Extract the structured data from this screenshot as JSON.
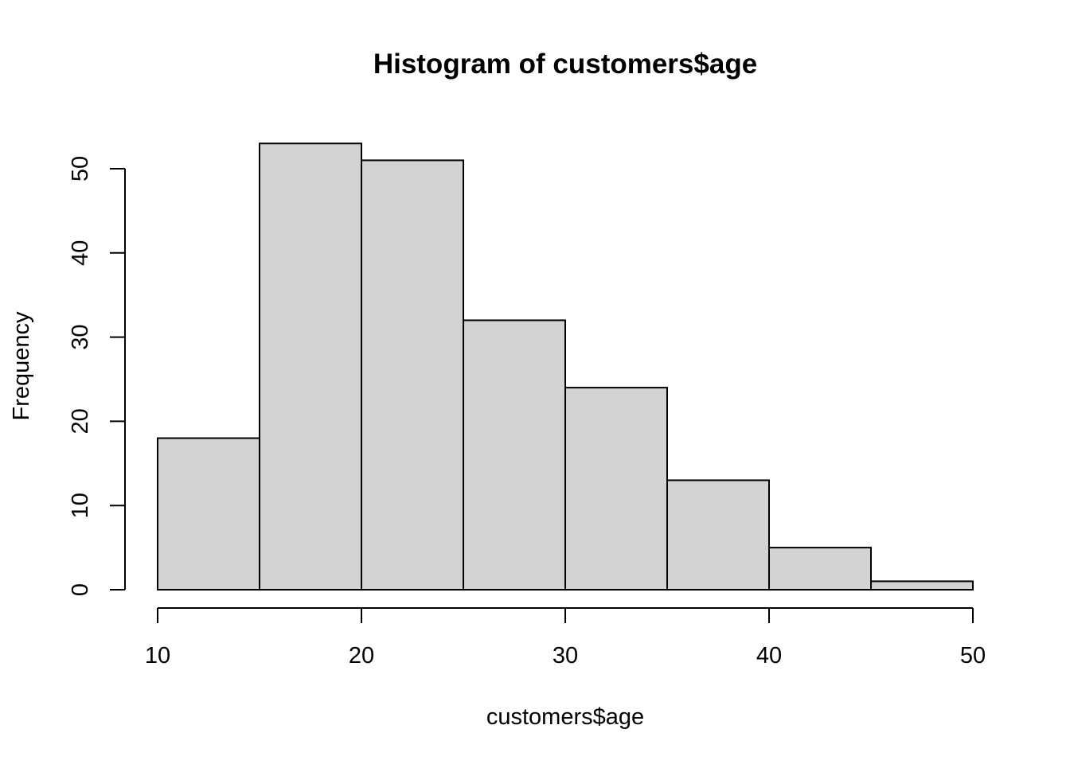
{
  "chart_data": {
    "type": "bar",
    "title": "Histogram of customers$age",
    "xlabel": "customers$age",
    "ylabel": "Frequency",
    "bins": [
      {
        "start": 10,
        "end": 15,
        "count": 18
      },
      {
        "start": 15,
        "end": 20,
        "count": 53
      },
      {
        "start": 20,
        "end": 25,
        "count": 51
      },
      {
        "start": 25,
        "end": 30,
        "count": 32
      },
      {
        "start": 30,
        "end": 35,
        "count": 24
      },
      {
        "start": 35,
        "end": 40,
        "count": 13
      },
      {
        "start": 40,
        "end": 45,
        "count": 5
      },
      {
        "start": 45,
        "end": 50,
        "count": 1
      }
    ],
    "xlim": [
      10,
      50
    ],
    "ylim": [
      0,
      53
    ],
    "x_ticks": [
      10,
      20,
      30,
      40,
      50
    ],
    "y_ticks": [
      0,
      10,
      20,
      30,
      40,
      50
    ],
    "grid": false,
    "legend": "none",
    "bar_fill": "#d3d3d3",
    "bar_stroke": "#000000"
  }
}
